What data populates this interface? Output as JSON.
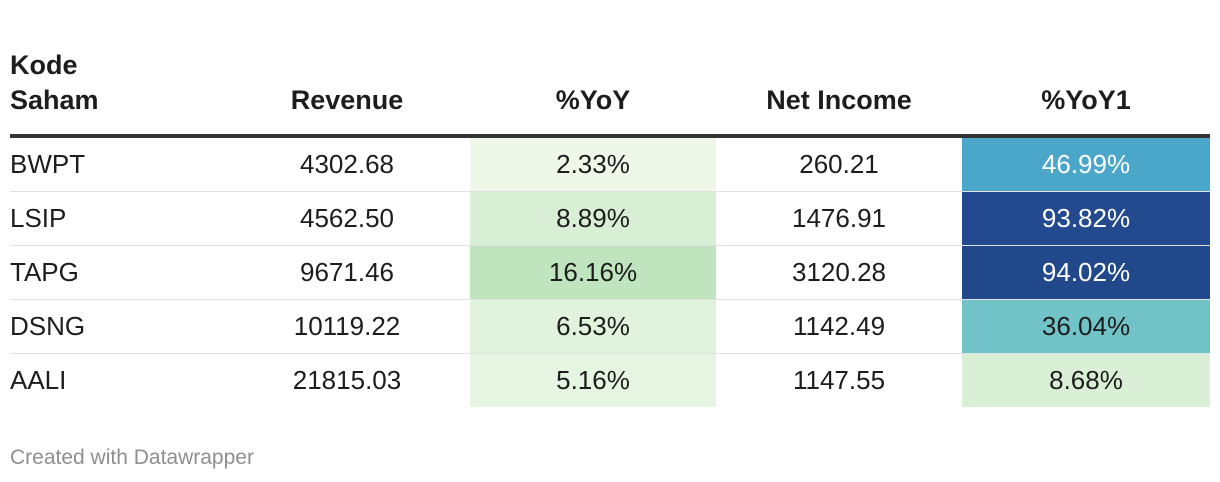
{
  "chart_data": {
    "type": "table",
    "columns": [
      "Kode Saham",
      "Revenue",
      "%YoY",
      "Net Income",
      "%YoY1"
    ],
    "rows": [
      {
        "kode": "BWPT",
        "revenue": "4302.68",
        "yoy": "2.33%",
        "net_income": "260.21",
        "yoy1": "46.99%",
        "yoy_bg": "#eef7e8",
        "yoy1_bg": "#4ba7c9",
        "yoy1_color": "#ffffff"
      },
      {
        "kode": "LSIP",
        "revenue": "4562.50",
        "yoy": "8.89%",
        "net_income": "1476.91",
        "yoy1": "93.82%",
        "yoy_bg": "#d8efd5",
        "yoy1_bg": "#234a8e",
        "yoy1_color": "#ffffff"
      },
      {
        "kode": "TAPG",
        "revenue": "9671.46",
        "yoy": "16.16%",
        "net_income": "3120.28",
        "yoy1": "94.02%",
        "yoy_bg": "#bfe4be",
        "yoy1_bg": "#22488c",
        "yoy1_color": "#ffffff"
      },
      {
        "kode": "DSNG",
        "revenue": "10119.22",
        "yoy": "6.53%",
        "net_income": "1142.49",
        "yoy1": "36.04%",
        "yoy_bg": "#e1f3dc",
        "yoy1_bg": "#71c3c7",
        "yoy1_color": "#1d1d1d"
      },
      {
        "kode": "AALI",
        "revenue": "21815.03",
        "yoy": "5.16%",
        "net_income": "1147.55",
        "yoy1": "8.68%",
        "yoy_bg": "#e6f5e1",
        "yoy1_bg": "#d9f0d6",
        "yoy1_color": "#1d1d1d"
      }
    ]
  },
  "footer": {
    "credit": "Created with Datawrapper"
  }
}
